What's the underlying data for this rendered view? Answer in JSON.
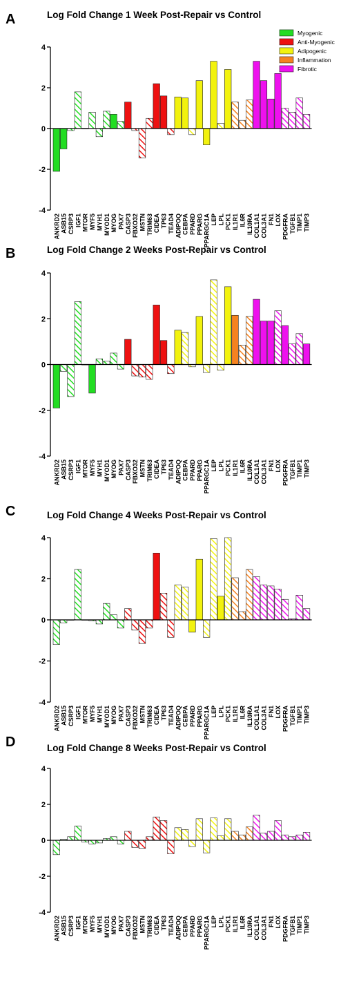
{
  "categories": [
    "ANKRD2",
    "ASB15",
    "CSRP3",
    "IGF1",
    "MTOR",
    "MYF5",
    "MYH1",
    "MYOD1",
    "MYOG",
    "PAX7",
    "CASP3",
    "FBXO32",
    "MSTN",
    "TRIM63",
    "CIDEA",
    "TP63",
    "TEAD4",
    "ADIPOQ",
    "CEBPA",
    "PPARD",
    "PPARG",
    "PPARGC1A",
    "LEP",
    "LPL",
    "PCK1",
    "IL1R1",
    "IL6R",
    "IL10RA",
    "COL1A1",
    "COL3A1",
    "FN1",
    "LOX",
    "PDGFRA",
    "TGFB1",
    "TIMP1",
    "TIMP3"
  ],
  "group_of_category": [
    "myo",
    "myo",
    "myo",
    "myo",
    "myo",
    "myo",
    "myo",
    "myo",
    "myo",
    "myo",
    "anti",
    "anti",
    "anti",
    "anti",
    "anti",
    "anti",
    "anti",
    "adi",
    "adi",
    "adi",
    "adi",
    "adi",
    "adi",
    "adi",
    "adi",
    "inf",
    "inf",
    "inf",
    "fib",
    "fib",
    "fib",
    "fib",
    "fib",
    "fib",
    "fib",
    "fib"
  ],
  "colors": {
    "myo": "#22dd22",
    "anti": "#ee1111",
    "adi": "#f2f20e",
    "inf": "#f58220",
    "fib": "#ee11ee"
  },
  "legend": [
    {
      "key": "myo",
      "label": "Myogenic"
    },
    {
      "key": "anti",
      "label": "Anti-Myogenic"
    },
    {
      "key": "adi",
      "label": "Adipogenic"
    },
    {
      "key": "inf",
      "label": "Inflammation"
    },
    {
      "key": "fib",
      "label": "Fibrotic"
    }
  ],
  "chart_data": [
    {
      "panel": "A",
      "type": "bar",
      "title": "Log Fold Change 1 Week Post-Repair vs Control",
      "ylim": [
        -4,
        4
      ],
      "yticks": [
        "-4",
        "-2",
        "0",
        "2",
        "4"
      ],
      "values": [
        -2.1,
        -1.0,
        -0.1,
        1.8,
        0.0,
        0.8,
        -0.4,
        0.85,
        0.7,
        0.35,
        1.3,
        -0.1,
        -1.45,
        0.5,
        2.2,
        1.6,
        -0.3,
        1.55,
        1.5,
        -0.3,
        2.35,
        -0.8,
        3.3,
        0.25,
        2.9,
        1.3,
        0.4,
        1.4,
        3.3,
        2.35,
        1.45,
        2.7,
        1.0,
        0.8,
        1.5,
        0.7
      ],
      "solid": [
        true,
        true,
        false,
        false,
        false,
        false,
        false,
        false,
        true,
        false,
        true,
        false,
        false,
        false,
        true,
        true,
        false,
        true,
        true,
        false,
        true,
        true,
        true,
        false,
        true,
        false,
        false,
        false,
        true,
        true,
        true,
        true,
        false,
        false,
        false,
        false
      ]
    },
    {
      "panel": "B",
      "type": "bar",
      "title": "Log Fold Change 2 Weeks Post-Repair vs Control",
      "ylim": [
        -4,
        4
      ],
      "yticks": [
        "-4",
        "-2",
        "0",
        "2",
        "4"
      ],
      "values": [
        -1.9,
        -0.3,
        -1.4,
        2.75,
        0.0,
        -1.25,
        0.25,
        0.15,
        0.5,
        -0.2,
        1.1,
        -0.5,
        -0.55,
        -0.65,
        2.6,
        1.05,
        -0.4,
        1.5,
        1.4,
        -0.1,
        2.1,
        -0.35,
        3.7,
        -0.25,
        3.4,
        2.15,
        0.85,
        2.1,
        2.85,
        1.9,
        1.9,
        2.35,
        1.7,
        0.9,
        1.35,
        0.9
      ],
      "solid": [
        true,
        false,
        false,
        false,
        false,
        true,
        false,
        false,
        false,
        false,
        true,
        false,
        false,
        false,
        true,
        true,
        false,
        true,
        false,
        false,
        true,
        false,
        false,
        false,
        true,
        true,
        false,
        false,
        true,
        true,
        true,
        false,
        true,
        false,
        false,
        true
      ]
    },
    {
      "panel": "C",
      "type": "bar",
      "title": "Log Fold Change 4 Weeks Post-Repair vs Control",
      "ylim": [
        -4,
        4
      ],
      "yticks": [
        "-4",
        "-2",
        "0",
        "2",
        "4"
      ],
      "values": [
        -1.2,
        -0.15,
        0.0,
        2.45,
        0.0,
        -0.05,
        -0.2,
        0.8,
        0.25,
        -0.4,
        0.55,
        -0.5,
        -1.15,
        -0.4,
        3.25,
        1.3,
        -0.85,
        1.7,
        1.6,
        -0.6,
        2.95,
        -0.85,
        3.95,
        1.15,
        4.0,
        2.05,
        0.4,
        2.45,
        2.1,
        1.7,
        1.65,
        1.5,
        1.0,
        0.05,
        1.2,
        0.55
      ],
      "solid": [
        false,
        false,
        false,
        false,
        false,
        false,
        false,
        false,
        false,
        false,
        false,
        false,
        false,
        false,
        true,
        false,
        false,
        false,
        false,
        true,
        true,
        false,
        false,
        true,
        false,
        false,
        false,
        false,
        false,
        false,
        false,
        false,
        false,
        false,
        false,
        false
      ]
    },
    {
      "panel": "D",
      "type": "bar",
      "title": "Log Fold Change 8 Weeks Post-Repair vs Control",
      "ylim": [
        -4,
        4
      ],
      "yticks": [
        "-4",
        "-2",
        "0",
        "2",
        "4"
      ],
      "values": [
        -0.8,
        0.05,
        0.2,
        0.8,
        -0.1,
        -0.2,
        -0.15,
        0.1,
        0.2,
        -0.2,
        0.5,
        -0.4,
        -0.45,
        0.2,
        1.3,
        1.1,
        -0.75,
        0.7,
        0.6,
        -0.35,
        1.2,
        -0.7,
        1.25,
        0.25,
        1.2,
        0.5,
        0.3,
        0.75,
        1.4,
        0.4,
        0.5,
        1.1,
        0.3,
        0.2,
        0.3,
        0.45
      ],
      "solid": [
        false,
        false,
        false,
        false,
        false,
        false,
        false,
        false,
        false,
        false,
        false,
        false,
        false,
        false,
        false,
        false,
        false,
        false,
        false,
        false,
        false,
        false,
        false,
        false,
        false,
        false,
        false,
        false,
        false,
        false,
        false,
        false,
        false,
        false,
        false,
        false
      ]
    }
  ]
}
